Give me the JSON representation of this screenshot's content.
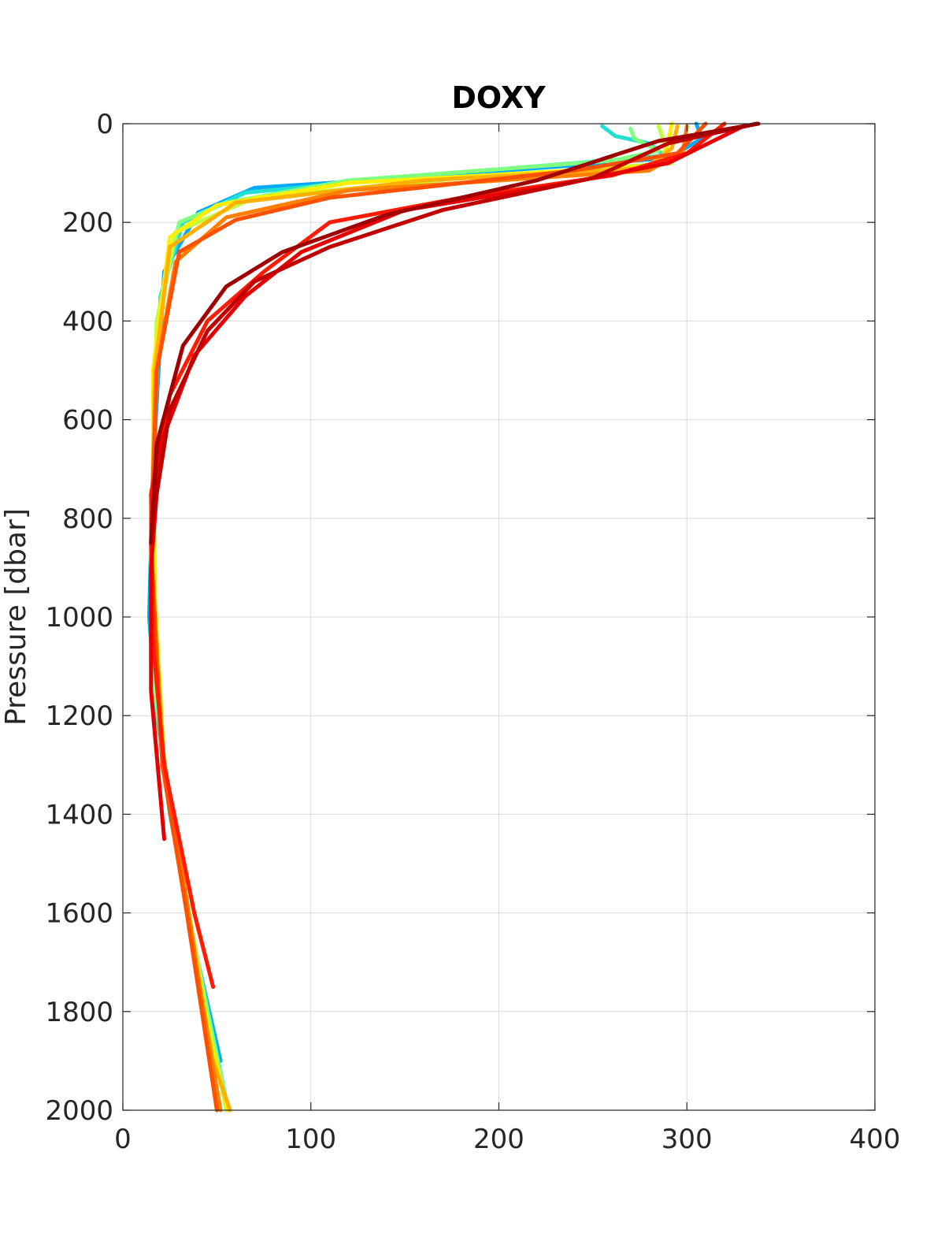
{
  "chart_data": {
    "type": "line",
    "title": "DOXY",
    "xlabel": "",
    "ylabel": "Pressure [dbar]",
    "xlim": [
      0,
      400
    ],
    "ylim": [
      0,
      2000
    ],
    "y_reversed": true,
    "grid": true,
    "xticks": [
      "0",
      "100",
      "200",
      "300",
      "400"
    ],
    "yticks": [
      "0",
      "200",
      "400",
      "600",
      "800",
      "1000",
      "1200",
      "1400",
      "1600",
      "1800",
      "2000"
    ],
    "colormap_note": "profiles colored by cycle order, blue (early) to dark red (late)",
    "series": [
      {
        "color": "#00aaff",
        "points": [
          [
            305,
            0
          ],
          [
            308,
            30
          ],
          [
            290,
            70
          ],
          [
            150,
            110
          ],
          [
            70,
            130
          ],
          [
            40,
            180
          ],
          [
            22,
            300
          ],
          [
            16,
            700
          ],
          [
            14,
            1000
          ],
          [
            18,
            1200
          ],
          [
            30,
            1500
          ],
          [
            40,
            1700
          ],
          [
            52,
            1900
          ]
        ]
      },
      {
        "color": "#22e0d0",
        "points": [
          [
            255,
            5
          ],
          [
            262,
            25
          ],
          [
            280,
            40
          ],
          [
            288,
            65
          ],
          [
            160,
            105
          ],
          [
            65,
            140
          ],
          [
            32,
            200
          ],
          [
            20,
            350
          ],
          [
            15,
            800
          ],
          [
            15,
            1100
          ],
          [
            25,
            1400
          ],
          [
            40,
            1700
          ],
          [
            55,
            1980
          ]
        ]
      },
      {
        "color": "#80ff80",
        "points": [
          [
            270,
            10
          ],
          [
            272,
            30
          ],
          [
            285,
            55
          ],
          [
            260,
            75
          ],
          [
            120,
            115
          ],
          [
            55,
            160
          ],
          [
            30,
            200
          ],
          [
            18,
            400
          ],
          [
            15,
            900
          ],
          [
            17,
            1150
          ],
          [
            30,
            1500
          ],
          [
            45,
            1800
          ],
          [
            56,
            2000
          ]
        ]
      },
      {
        "color": "#c0ff40",
        "points": [
          [
            285,
            5
          ],
          [
            288,
            40
          ],
          [
            292,
            80
          ],
          [
            180,
            110
          ],
          [
            70,
            150
          ],
          [
            28,
            220
          ],
          [
            18,
            400
          ],
          [
            15,
            900
          ],
          [
            20,
            1250
          ],
          [
            33,
            1550
          ],
          [
            44,
            1800
          ],
          [
            55,
            2000
          ]
        ]
      },
      {
        "color": "#ffee00",
        "points": [
          [
            292,
            0
          ],
          [
            290,
            40
          ],
          [
            285,
            85
          ],
          [
            120,
            120
          ],
          [
            50,
            165
          ],
          [
            25,
            230
          ],
          [
            16,
            500
          ],
          [
            17,
            950
          ],
          [
            22,
            1300
          ],
          [
            35,
            1600
          ],
          [
            46,
            1850
          ],
          [
            56,
            2000
          ]
        ]
      },
      {
        "color": "#ffb000",
        "points": [
          [
            295,
            5
          ],
          [
            292,
            50
          ],
          [
            278,
            90
          ],
          [
            160,
            115
          ],
          [
            60,
            160
          ],
          [
            25,
            250
          ],
          [
            17,
            500
          ],
          [
            15,
            900
          ],
          [
            22,
            1300
          ],
          [
            36,
            1650
          ],
          [
            48,
            1900
          ],
          [
            57,
            2000
          ]
        ]
      },
      {
        "color": "#ff8000",
        "points": [
          [
            300,
            5
          ],
          [
            298,
            55
          ],
          [
            280,
            95
          ],
          [
            120,
            135
          ],
          [
            55,
            190
          ],
          [
            28,
            280
          ],
          [
            18,
            500
          ],
          [
            15,
            850
          ],
          [
            20,
            1250
          ],
          [
            33,
            1550
          ],
          [
            45,
            1850
          ],
          [
            52,
            2000
          ]
        ]
      },
      {
        "color": "#ff5000",
        "points": [
          [
            310,
            0
          ],
          [
            295,
            60
          ],
          [
            240,
            95
          ],
          [
            110,
            150
          ],
          [
            60,
            195
          ],
          [
            30,
            260
          ],
          [
            18,
            500
          ],
          [
            15,
            850
          ],
          [
            21,
            1300
          ],
          [
            34,
            1600
          ],
          [
            44,
            1850
          ],
          [
            50,
            2000
          ]
        ]
      },
      {
        "color": "#ff1a00",
        "points": [
          [
            320,
            0
          ],
          [
            300,
            60
          ],
          [
            260,
            105
          ],
          [
            180,
            150
          ],
          [
            110,
            200
          ],
          [
            75,
            300
          ],
          [
            45,
            400
          ],
          [
            25,
            550
          ],
          [
            15,
            750
          ],
          [
            16,
            1050
          ],
          [
            22,
            1300
          ],
          [
            38,
            1600
          ],
          [
            48,
            1750
          ]
        ]
      },
      {
        "color": "#e60000",
        "points": [
          [
            330,
            5
          ],
          [
            290,
            80
          ],
          [
            230,
            125
          ],
          [
            150,
            175
          ],
          [
            95,
            260
          ],
          [
            65,
            350
          ],
          [
            38,
            470
          ],
          [
            20,
            650
          ],
          [
            15,
            900
          ],
          [
            15,
            1150
          ],
          [
            22,
            1450
          ]
        ]
      },
      {
        "color": "#c00000",
        "points": [
          [
            337,
            0
          ],
          [
            290,
            40
          ],
          [
            250,
            110
          ],
          [
            170,
            175
          ],
          [
            110,
            250
          ],
          [
            70,
            320
          ],
          [
            45,
            420
          ],
          [
            25,
            580
          ],
          [
            16,
            800
          ]
        ]
      },
      {
        "color": "#a00000",
        "points": [
          [
            338,
            0
          ],
          [
            285,
            35
          ],
          [
            220,
            115
          ],
          [
            140,
            185
          ],
          [
            85,
            260
          ],
          [
            55,
            330
          ],
          [
            32,
            450
          ],
          [
            18,
            650
          ],
          [
            15,
            850
          ]
        ]
      }
    ]
  }
}
